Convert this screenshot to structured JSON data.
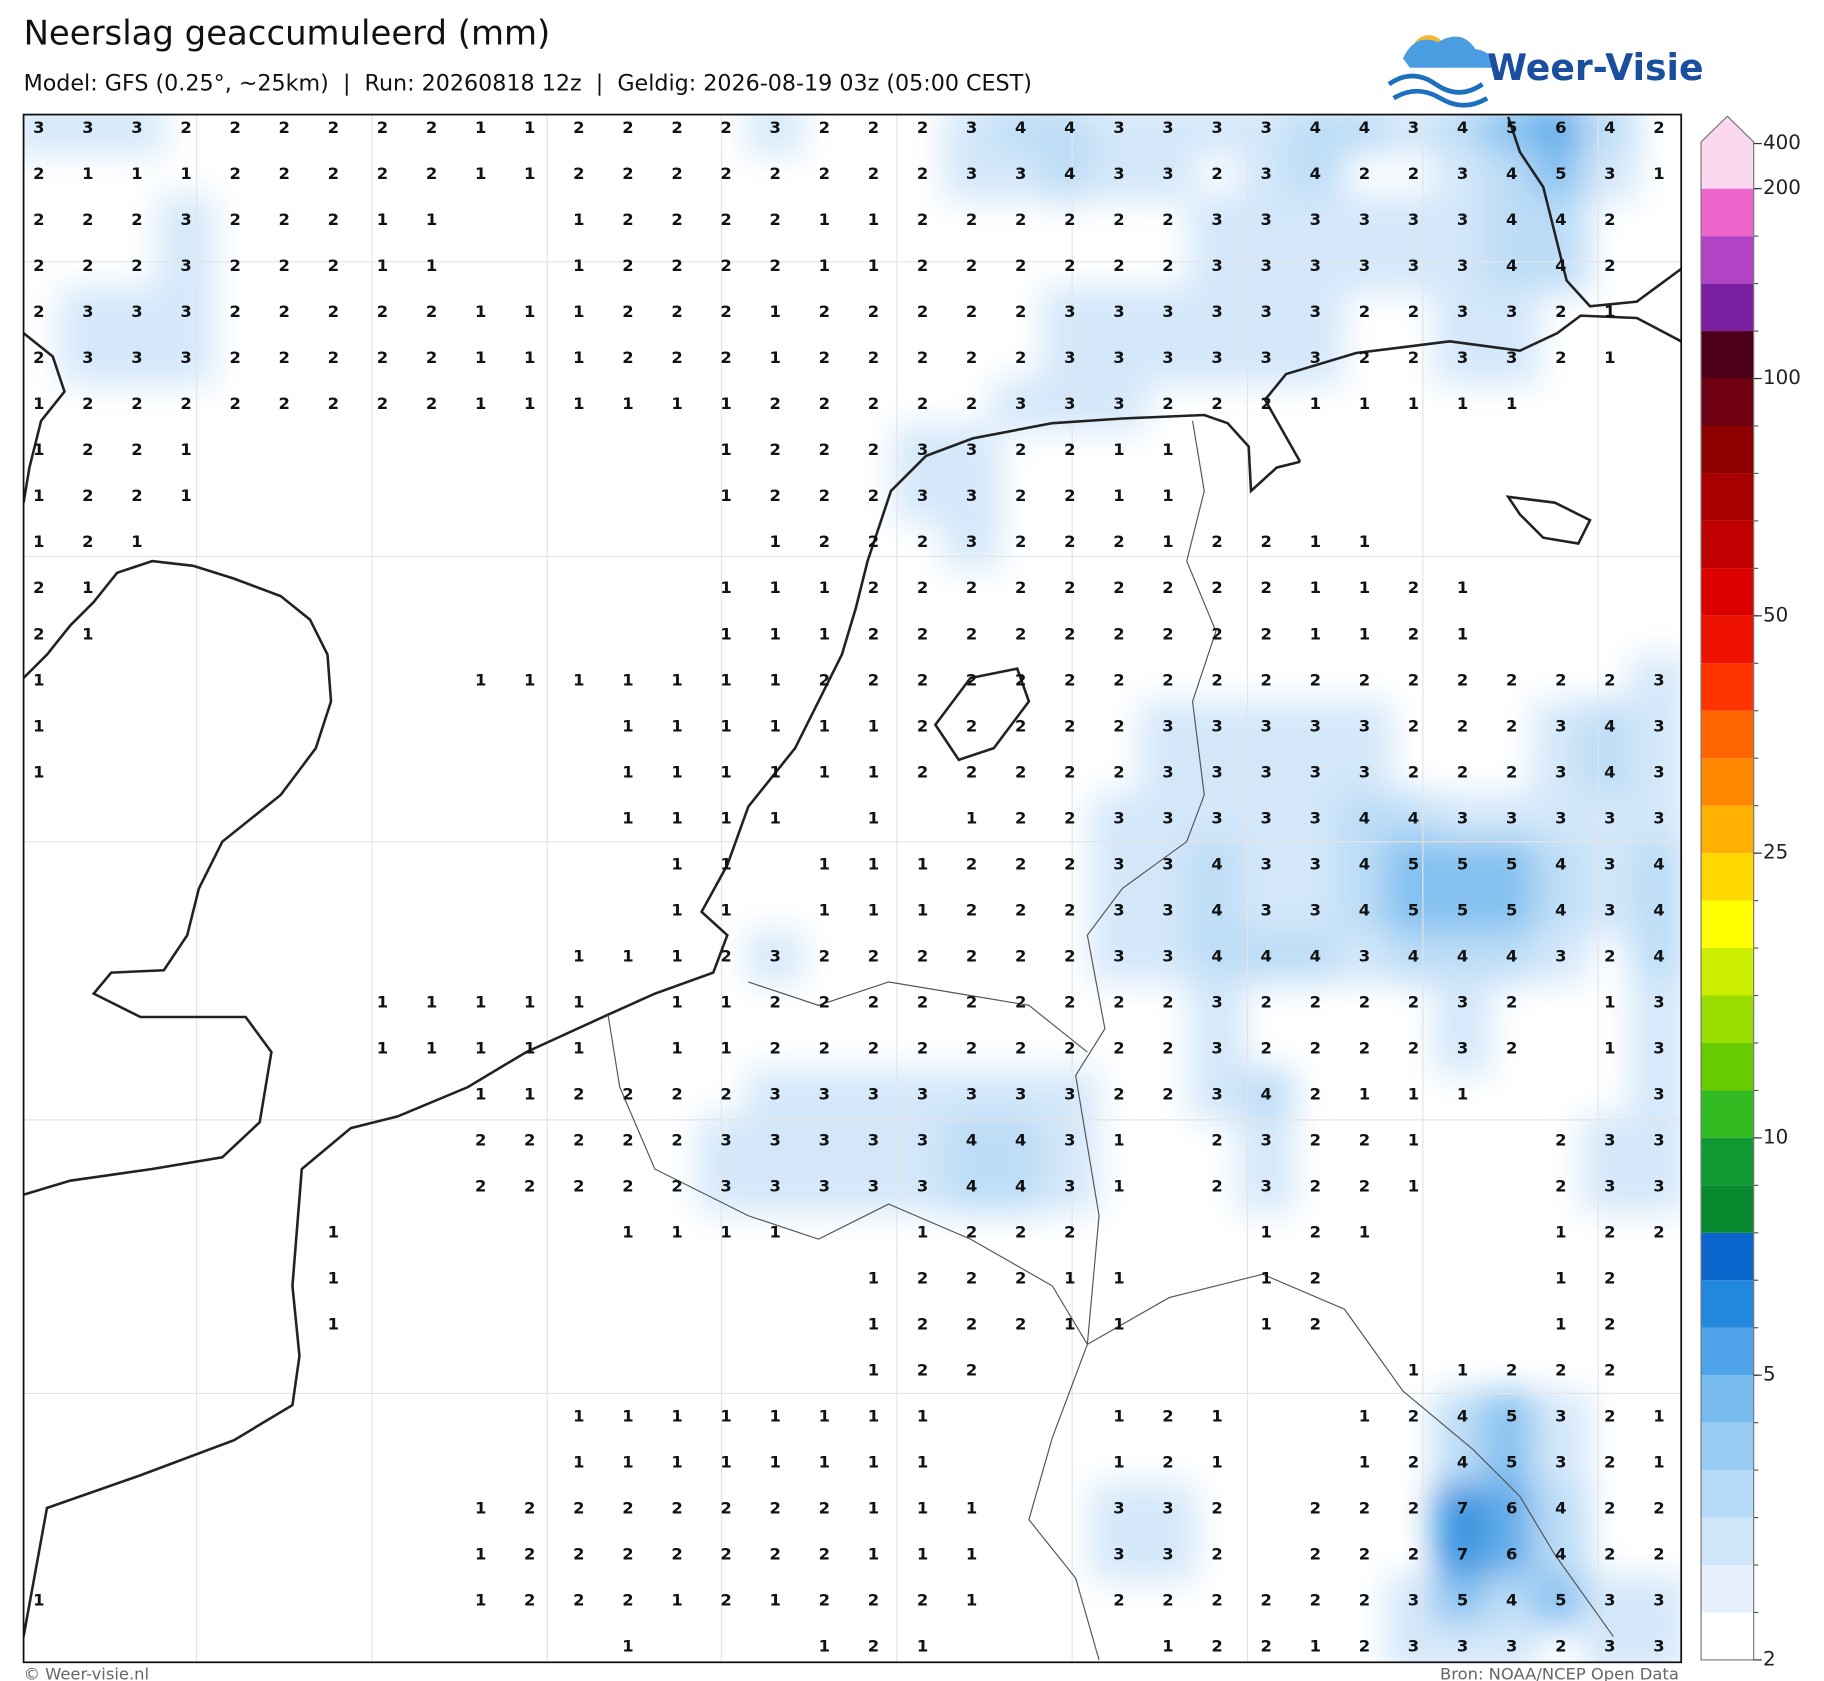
{
  "header": {
    "title": "Neerslag geaccumuleerd (mm)",
    "subtitle": "Model: GFS (0.25°, ~25km)  |  Run: 20260818 12z  |  Geldig: 2026-08-19 03z (05:00 CEST)",
    "logo": "Weer-Visie"
  },
  "map": {
    "values": [
      [
        3,
        3,
        3,
        2,
        2,
        2,
        2,
        2,
        2,
        1,
        1,
        2,
        2,
        2,
        2,
        3,
        2,
        2,
        2,
        3,
        4,
        4,
        3,
        3,
        3,
        3,
        4,
        4,
        3,
        4,
        5,
        6,
        4,
        2
      ],
      [
        2,
        1,
        1,
        1,
        2,
        2,
        2,
        2,
        2,
        1,
        1,
        2,
        2,
        2,
        2,
        2,
        2,
        2,
        2,
        3,
        3,
        4,
        3,
        3,
        2,
        3,
        4,
        2,
        2,
        3,
        4,
        5,
        3,
        1
      ],
      [
        2,
        2,
        2,
        3,
        2,
        2,
        2,
        1,
        1,
        null,
        null,
        1,
        2,
        2,
        2,
        2,
        1,
        1,
        2,
        2,
        2,
        2,
        2,
        2,
        3,
        3,
        3,
        3,
        3,
        3,
        4,
        4,
        2,
        null
      ],
      [
        2,
        2,
        2,
        3,
        2,
        2,
        2,
        1,
        1,
        null,
        null,
        1,
        2,
        2,
        2,
        2,
        1,
        1,
        2,
        2,
        2,
        2,
        2,
        2,
        3,
        3,
        3,
        3,
        3,
        3,
        4,
        4,
        2,
        null
      ],
      [
        2,
        3,
        3,
        3,
        2,
        2,
        2,
        2,
        2,
        1,
        1,
        1,
        2,
        2,
        2,
        1,
        2,
        2,
        2,
        2,
        2,
        3,
        3,
        3,
        3,
        3,
        3,
        2,
        2,
        3,
        3,
        2,
        1,
        null
      ],
      [
        2,
        3,
        3,
        3,
        2,
        2,
        2,
        2,
        2,
        1,
        1,
        1,
        2,
        2,
        2,
        1,
        2,
        2,
        2,
        2,
        2,
        3,
        3,
        3,
        3,
        3,
        3,
        2,
        2,
        3,
        3,
        2,
        1,
        null
      ],
      [
        1,
        2,
        2,
        2,
        2,
        2,
        2,
        2,
        2,
        1,
        1,
        1,
        1,
        1,
        1,
        2,
        2,
        2,
        2,
        2,
        3,
        3,
        3,
        2,
        2,
        2,
        1,
        1,
        1,
        1,
        1,
        null,
        null,
        null
      ],
      [
        1,
        2,
        2,
        1,
        null,
        null,
        null,
        null,
        null,
        null,
        null,
        null,
        null,
        null,
        1,
        2,
        2,
        2,
        3,
        3,
        2,
        2,
        1,
        1,
        null,
        null,
        null,
        null,
        null,
        null,
        null,
        null,
        null,
        null
      ],
      [
        1,
        2,
        2,
        1,
        null,
        null,
        null,
        null,
        null,
        null,
        null,
        null,
        null,
        null,
        1,
        2,
        2,
        2,
        3,
        3,
        2,
        2,
        1,
        1,
        null,
        null,
        null,
        null,
        null,
        null,
        null,
        null,
        null,
        null
      ],
      [
        1,
        2,
        1,
        null,
        null,
        null,
        null,
        null,
        null,
        null,
        null,
        null,
        null,
        null,
        null,
        1,
        2,
        2,
        2,
        3,
        2,
        2,
        2,
        1,
        2,
        2,
        1,
        1,
        null,
        null,
        null,
        null,
        null,
        null
      ],
      [
        2,
        1,
        null,
        null,
        null,
        null,
        null,
        null,
        null,
        null,
        null,
        null,
        null,
        null,
        1,
        1,
        1,
        2,
        2,
        2,
        2,
        2,
        2,
        2,
        2,
        2,
        1,
        1,
        2,
        1,
        null,
        null,
        null,
        null
      ],
      [
        2,
        1,
        null,
        null,
        null,
        null,
        null,
        null,
        null,
        null,
        null,
        null,
        null,
        null,
        1,
        1,
        1,
        2,
        2,
        2,
        2,
        2,
        2,
        2,
        2,
        2,
        1,
        1,
        2,
        1,
        null,
        null,
        null,
        null
      ],
      [
        1,
        null,
        null,
        null,
        null,
        null,
        null,
        null,
        null,
        1,
        1,
        1,
        1,
        1,
        1,
        1,
        2,
        2,
        2,
        2,
        2,
        2,
        2,
        2,
        2,
        2,
        2,
        2,
        2,
        2,
        2,
        2,
        2,
        3
      ],
      [
        1,
        null,
        null,
        null,
        null,
        null,
        null,
        null,
        null,
        null,
        null,
        null,
        1,
        1,
        1,
        1,
        1,
        1,
        2,
        2,
        2,
        2,
        2,
        3,
        3,
        3,
        3,
        3,
        2,
        2,
        2,
        3,
        4,
        3
      ],
      [
        1,
        null,
        null,
        null,
        null,
        null,
        null,
        null,
        null,
        null,
        null,
        null,
        1,
        1,
        1,
        1,
        1,
        1,
        2,
        2,
        2,
        2,
        2,
        3,
        3,
        3,
        3,
        3,
        2,
        2,
        2,
        3,
        4,
        3
      ],
      [
        null,
        null,
        null,
        null,
        null,
        null,
        null,
        null,
        null,
        null,
        null,
        null,
        1,
        1,
        1,
        1,
        null,
        1,
        null,
        1,
        2,
        2,
        3,
        3,
        3,
        3,
        3,
        4,
        4,
        3,
        3,
        3,
        3,
        3
      ],
      [
        null,
        null,
        null,
        null,
        null,
        null,
        null,
        null,
        null,
        null,
        null,
        null,
        null,
        1,
        1,
        null,
        1,
        1,
        1,
        2,
        2,
        2,
        3,
        3,
        4,
        3,
        3,
        4,
        5,
        5,
        5,
        4,
        3,
        4
      ],
      [
        null,
        null,
        null,
        null,
        null,
        null,
        null,
        null,
        null,
        null,
        null,
        null,
        null,
        1,
        1,
        null,
        1,
        1,
        1,
        2,
        2,
        2,
        3,
        3,
        4,
        3,
        3,
        4,
        5,
        5,
        5,
        4,
        3,
        4
      ],
      [
        null,
        null,
        null,
        null,
        null,
        null,
        null,
        null,
        null,
        null,
        null,
        1,
        1,
        1,
        2,
        3,
        2,
        2,
        2,
        2,
        2,
        2,
        3,
        3,
        4,
        4,
        4,
        3,
        4,
        4,
        4,
        3,
        2,
        4
      ],
      [
        null,
        null,
        null,
        null,
        null,
        null,
        null,
        1,
        1,
        1,
        1,
        1,
        null,
        1,
        1,
        2,
        2,
        2,
        2,
        2,
        2,
        2,
        2,
        2,
        3,
        2,
        2,
        2,
        2,
        3,
        2,
        null,
        1,
        3
      ],
      [
        null,
        null,
        null,
        null,
        null,
        null,
        null,
        1,
        1,
        1,
        1,
        1,
        null,
        1,
        1,
        2,
        2,
        2,
        2,
        2,
        2,
        2,
        2,
        2,
        3,
        2,
        2,
        2,
        2,
        3,
        2,
        null,
        1,
        3
      ],
      [
        null,
        null,
        null,
        null,
        null,
        null,
        null,
        null,
        null,
        1,
        1,
        2,
        2,
        2,
        2,
        3,
        3,
        3,
        3,
        3,
        3,
        3,
        2,
        2,
        3,
        4,
        2,
        1,
        1,
        1,
        null,
        null,
        null,
        3
      ],
      [
        null,
        null,
        null,
        null,
        null,
        null,
        null,
        null,
        null,
        2,
        2,
        2,
        2,
        2,
        3,
        3,
        3,
        3,
        3,
        4,
        4,
        3,
        1,
        null,
        2,
        3,
        2,
        2,
        1,
        null,
        null,
        2,
        3,
        3
      ],
      [
        null,
        null,
        null,
        null,
        null,
        null,
        null,
        null,
        null,
        2,
        2,
        2,
        2,
        2,
        3,
        3,
        3,
        3,
        3,
        4,
        4,
        3,
        1,
        null,
        2,
        3,
        2,
        2,
        1,
        null,
        null,
        2,
        3,
        3
      ],
      [
        null,
        null,
        null,
        null,
        null,
        null,
        1,
        null,
        null,
        null,
        null,
        null,
        1,
        1,
        1,
        1,
        null,
        null,
        1,
        2,
        2,
        2,
        null,
        null,
        null,
        1,
        2,
        1,
        null,
        null,
        null,
        1,
        2,
        2
      ],
      [
        null,
        null,
        null,
        null,
        null,
        null,
        1,
        null,
        null,
        null,
        null,
        null,
        null,
        null,
        null,
        null,
        null,
        1,
        2,
        2,
        2,
        1,
        1,
        null,
        null,
        1,
        2,
        null,
        null,
        null,
        null,
        1,
        2,
        null
      ],
      [
        null,
        null,
        null,
        null,
        null,
        null,
        1,
        null,
        null,
        null,
        null,
        null,
        null,
        null,
        null,
        null,
        null,
        1,
        2,
        2,
        2,
        1,
        1,
        null,
        null,
        1,
        2,
        null,
        null,
        null,
        null,
        1,
        2,
        null
      ],
      [
        null,
        null,
        null,
        null,
        null,
        null,
        null,
        null,
        null,
        null,
        null,
        null,
        null,
        null,
        null,
        null,
        null,
        1,
        2,
        2,
        null,
        null,
        null,
        null,
        null,
        null,
        null,
        null,
        1,
        1,
        2,
        2,
        2,
        null
      ],
      [
        null,
        null,
        null,
        null,
        null,
        null,
        null,
        null,
        null,
        null,
        null,
        1,
        1,
        1,
        1,
        1,
        1,
        1,
        1,
        null,
        null,
        null,
        1,
        2,
        1,
        null,
        null,
        1,
        2,
        4,
        5,
        3,
        2,
        1
      ],
      [
        null,
        null,
        null,
        null,
        null,
        null,
        null,
        null,
        null,
        null,
        null,
        1,
        1,
        1,
        1,
        1,
        1,
        1,
        1,
        null,
        null,
        null,
        1,
        2,
        1,
        null,
        null,
        1,
        2,
        4,
        5,
        3,
        2,
        1
      ],
      [
        null,
        null,
        null,
        null,
        null,
        null,
        null,
        null,
        null,
        1,
        2,
        2,
        2,
        2,
        2,
        2,
        2,
        1,
        1,
        1,
        null,
        null,
        3,
        3,
        2,
        null,
        2,
        2,
        2,
        7,
        6,
        4,
        2,
        2
      ],
      [
        null,
        null,
        null,
        null,
        null,
        null,
        null,
        null,
        null,
        1,
        2,
        2,
        2,
        2,
        2,
        2,
        2,
        1,
        1,
        1,
        null,
        null,
        3,
        3,
        2,
        null,
        2,
        2,
        2,
        7,
        6,
        4,
        2,
        2
      ],
      [
        1,
        null,
        null,
        null,
        null,
        null,
        null,
        null,
        null,
        1,
        2,
        2,
        2,
        1,
        2,
        1,
        2,
        2,
        2,
        1,
        null,
        null,
        2,
        2,
        2,
        2,
        2,
        2,
        3,
        5,
        4,
        5,
        3,
        3
      ],
      [
        null,
        null,
        null,
        null,
        null,
        null,
        null,
        null,
        null,
        null,
        null,
        null,
        1,
        null,
        null,
        null,
        1,
        2,
        1,
        null,
        null,
        null,
        null,
        1,
        2,
        2,
        1,
        2,
        3,
        3,
        3,
        2,
        3,
        3
      ]
    ]
  },
  "colorbar": {
    "colors": [
      "#ffffff",
      "#e6f1fc",
      "#cfe5f9",
      "#b5d9f6",
      "#99ccf3",
      "#77bbef",
      "#4fa3e8",
      "#2288dd",
      "#0a66cc",
      "#0a8a30",
      "#119933",
      "#33bb22",
      "#66cc00",
      "#99dd00",
      "#ccee00",
      "#ffff00",
      "#ffd800",
      "#ffb000",
      "#ff8800",
      "#ff6600",
      "#ff3300",
      "#ee1100",
      "#dd0000",
      "#c00000",
      "#a80000",
      "#8f0000",
      "#6e0012",
      "#4d0018",
      "#7a1fa0",
      "#b044c4",
      "#ee66cc",
      "#fcd7f0"
    ],
    "ticks": [
      2,
      5,
      10,
      25,
      50,
      100,
      200,
      400
    ]
  },
  "footer": {
    "copyright": "© Weer-visie.nl",
    "source": "Bron: NOAA/NCEP Open Data"
  }
}
